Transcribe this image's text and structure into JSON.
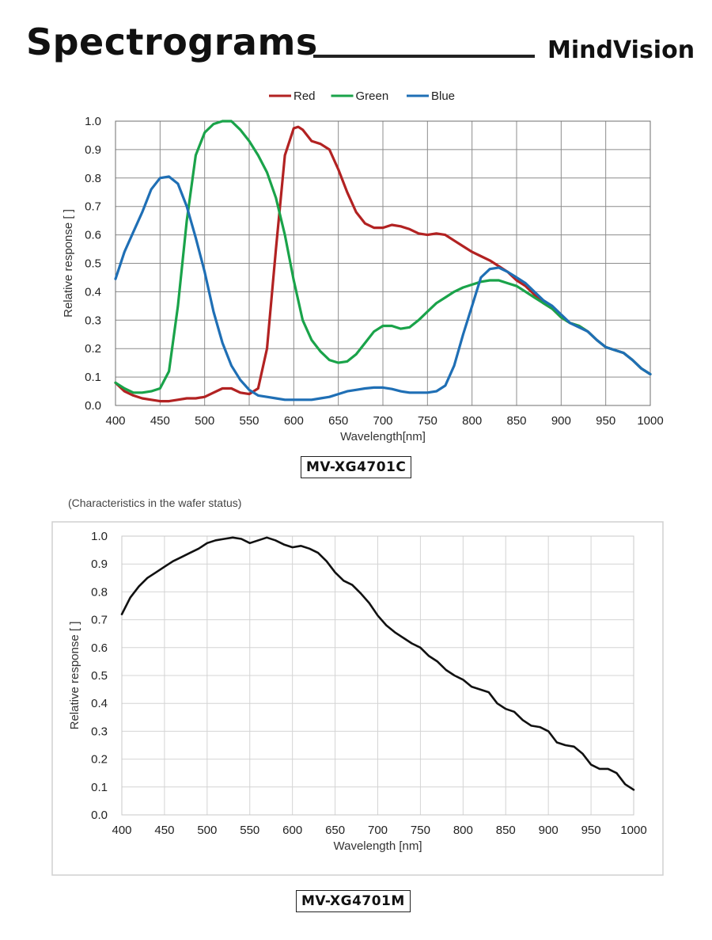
{
  "header": {
    "title": "Spectrograms",
    "brand": "MindVision"
  },
  "chart_data": [
    {
      "type": "line",
      "model": "MV-XG4701C",
      "xlabel": "Wavelength[nm]",
      "ylabel": "Relative response [ ]",
      "xlim": [
        400,
        1000
      ],
      "ylim": [
        0,
        1.0
      ],
      "x_ticks": [
        400,
        450,
        500,
        550,
        600,
        650,
        700,
        750,
        800,
        850,
        900,
        950,
        1000
      ],
      "y_ticks": [
        0.0,
        0.1,
        0.2,
        0.3,
        0.4,
        0.5,
        0.6,
        0.7,
        0.8,
        0.9,
        1.0
      ],
      "grid": true,
      "legend_position": "top",
      "series": [
        {
          "name": "Red",
          "color": "#b22222",
          "x": [
            400,
            410,
            420,
            430,
            440,
            450,
            460,
            470,
            480,
            490,
            500,
            510,
            520,
            530,
            540,
            550,
            560,
            570,
            580,
            590,
            600,
            605,
            610,
            620,
            630,
            640,
            650,
            660,
            670,
            680,
            690,
            700,
            710,
            720,
            730,
            740,
            750,
            760,
            770,
            780,
            790,
            800,
            810,
            820,
            830,
            840,
            850,
            860,
            870,
            880,
            890,
            900,
            910,
            920,
            930,
            940,
            950,
            960,
            970,
            980,
            990,
            1000
          ],
          "y": [
            0.08,
            0.05,
            0.035,
            0.025,
            0.02,
            0.015,
            0.015,
            0.02,
            0.025,
            0.025,
            0.03,
            0.045,
            0.06,
            0.06,
            0.045,
            0.04,
            0.06,
            0.2,
            0.55,
            0.88,
            0.975,
            0.98,
            0.97,
            0.93,
            0.92,
            0.9,
            0.83,
            0.75,
            0.68,
            0.64,
            0.625,
            0.625,
            0.635,
            0.63,
            0.62,
            0.605,
            0.6,
            0.605,
            0.6,
            0.58,
            0.56,
            0.54,
            0.525,
            0.51,
            0.49,
            0.47,
            0.44,
            0.42,
            0.39,
            0.36,
            0.34,
            0.31,
            0.29,
            0.28,
            0.26,
            0.23,
            0.205,
            0.195,
            0.185,
            0.16,
            0.13,
            0.11
          ]
        },
        {
          "name": "Green",
          "color": "#1aa34a",
          "x": [
            400,
            410,
            420,
            430,
            440,
            450,
            460,
            470,
            480,
            490,
            500,
            510,
            520,
            530,
            540,
            550,
            560,
            570,
            580,
            590,
            600,
            610,
            620,
            630,
            640,
            650,
            660,
            670,
            680,
            690,
            700,
            710,
            720,
            730,
            740,
            750,
            760,
            770,
            780,
            790,
            800,
            810,
            820,
            830,
            840,
            850,
            860,
            870,
            880,
            890,
            900,
            910,
            920,
            930,
            940,
            950,
            960,
            970,
            980,
            990,
            1000
          ],
          "y": [
            0.08,
            0.06,
            0.045,
            0.045,
            0.05,
            0.06,
            0.12,
            0.35,
            0.65,
            0.88,
            0.96,
            0.99,
            1.0,
            1.0,
            0.97,
            0.93,
            0.88,
            0.82,
            0.73,
            0.6,
            0.44,
            0.3,
            0.23,
            0.19,
            0.16,
            0.15,
            0.155,
            0.18,
            0.22,
            0.26,
            0.28,
            0.28,
            0.27,
            0.275,
            0.3,
            0.33,
            0.36,
            0.38,
            0.4,
            0.415,
            0.425,
            0.435,
            0.44,
            0.44,
            0.43,
            0.42,
            0.4,
            0.38,
            0.36,
            0.34,
            0.31,
            0.29,
            0.28,
            0.26,
            0.23,
            0.205,
            0.195,
            0.185,
            0.16,
            0.13,
            0.11
          ]
        },
        {
          "name": "Blue",
          "color": "#1f6fb5",
          "x": [
            400,
            410,
            420,
            430,
            440,
            450,
            460,
            470,
            480,
            490,
            500,
            510,
            520,
            530,
            540,
            550,
            560,
            570,
            580,
            590,
            600,
            610,
            620,
            630,
            640,
            650,
            660,
            670,
            680,
            690,
            700,
            710,
            720,
            730,
            740,
            750,
            760,
            770,
            780,
            790,
            800,
            810,
            820,
            830,
            840,
            850,
            860,
            870,
            880,
            890,
            900,
            910,
            920,
            930,
            940,
            950,
            960,
            970,
            980,
            990,
            1000
          ],
          "y": [
            0.445,
            0.54,
            0.61,
            0.68,
            0.76,
            0.8,
            0.805,
            0.78,
            0.7,
            0.59,
            0.47,
            0.33,
            0.22,
            0.14,
            0.09,
            0.055,
            0.035,
            0.03,
            0.025,
            0.02,
            0.02,
            0.02,
            0.02,
            0.025,
            0.03,
            0.04,
            0.05,
            0.055,
            0.06,
            0.063,
            0.063,
            0.058,
            0.05,
            0.045,
            0.045,
            0.045,
            0.05,
            0.07,
            0.14,
            0.25,
            0.35,
            0.45,
            0.48,
            0.485,
            0.47,
            0.45,
            0.43,
            0.4,
            0.37,
            0.35,
            0.32,
            0.29,
            0.275,
            0.26,
            0.23,
            0.205,
            0.195,
            0.185,
            0.16,
            0.13,
            0.11
          ]
        }
      ]
    },
    {
      "type": "line",
      "model": "MV-XG4701M",
      "note": "(Characteristics in the wafer status)",
      "xlabel": "Wavelength [nm]",
      "ylabel": "Relative response [ ]",
      "xlim": [
        400,
        1000
      ],
      "ylim": [
        0,
        1.0
      ],
      "x_ticks": [
        400,
        450,
        500,
        550,
        600,
        650,
        700,
        750,
        800,
        850,
        900,
        950,
        1000
      ],
      "y_ticks": [
        0.0,
        0.1,
        0.2,
        0.3,
        0.4,
        0.5,
        0.6,
        0.7,
        0.8,
        0.9,
        1.0
      ],
      "grid": true,
      "series": [
        {
          "color": "#111111",
          "x": [
            400,
            410,
            420,
            430,
            440,
            450,
            460,
            470,
            480,
            490,
            500,
            510,
            520,
            530,
            540,
            550,
            560,
            570,
            580,
            590,
            600,
            610,
            620,
            630,
            640,
            650,
            660,
            670,
            680,
            690,
            700,
            710,
            720,
            730,
            740,
            750,
            760,
            770,
            780,
            790,
            800,
            810,
            820,
            830,
            840,
            850,
            860,
            870,
            880,
            890,
            900,
            910,
            920,
            930,
            940,
            950,
            960,
            970,
            980,
            990,
            1000
          ],
          "y": [
            0.72,
            0.78,
            0.82,
            0.85,
            0.87,
            0.89,
            0.91,
            0.925,
            0.94,
            0.955,
            0.975,
            0.985,
            0.99,
            0.995,
            0.99,
            0.975,
            0.985,
            0.995,
            0.985,
            0.97,
            0.96,
            0.965,
            0.955,
            0.94,
            0.91,
            0.87,
            0.84,
            0.825,
            0.795,
            0.76,
            0.715,
            0.68,
            0.655,
            0.635,
            0.615,
            0.6,
            0.57,
            0.55,
            0.52,
            0.5,
            0.485,
            0.46,
            0.45,
            0.44,
            0.4,
            0.38,
            0.37,
            0.34,
            0.32,
            0.315,
            0.3,
            0.26,
            0.25,
            0.245,
            0.22,
            0.18,
            0.165,
            0.165,
            0.15,
            0.11,
            0.09
          ]
        }
      ]
    }
  ]
}
